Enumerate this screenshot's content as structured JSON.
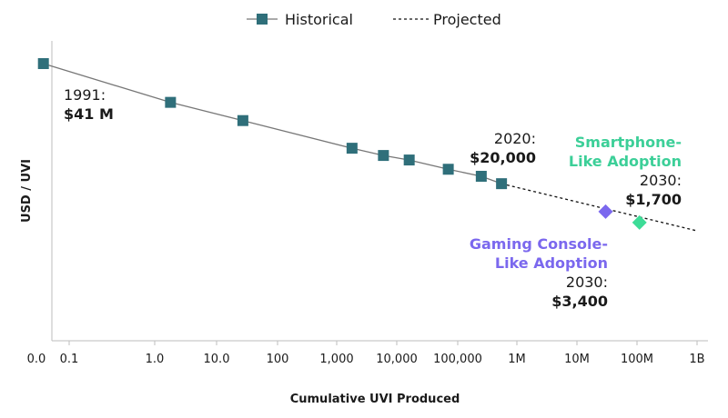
{
  "chart_data": {
    "type": "line",
    "xscale": "log",
    "xlabel": "Cumulative UVI Produced",
    "ylabel": "USD / UVI",
    "legend_position": "top-center",
    "x_tick_labels": [
      "0.0",
      "0.1",
      "1.0",
      "10.0",
      "100",
      "1,000",
      "10,000",
      "100,000",
      "1M",
      "10M",
      "100M",
      "1B"
    ],
    "grid": false,
    "series": [
      {
        "name": "Historical",
        "style": "solid-square-markers",
        "color": "#2f6f7a",
        "points": [
          {
            "x": 0.05,
            "y": 41000000
          },
          {
            "x": 1.8,
            "y": 3500000
          },
          {
            "x": 27,
            "y": 1100000
          },
          {
            "x": 1800,
            "y": 190000
          },
          {
            "x": 6000,
            "y": 120000
          },
          {
            "x": 16000,
            "y": 90000
          },
          {
            "x": 70000,
            "y": 50000
          },
          {
            "x": 250000,
            "y": 32000
          },
          {
            "x": 550000,
            "y": 20000
          }
        ]
      },
      {
        "name": "Projected",
        "style": "dashed",
        "color": "#111111",
        "points": [
          {
            "x": 550000,
            "y": 20000
          },
          {
            "x": 1000000000,
            "y": 1000
          }
        ]
      }
    ],
    "scenario_points": [
      {
        "x": 30000000,
        "y": 3400,
        "color": "#7b68ee"
      },
      {
        "x": 110000000,
        "y": 1700,
        "color": "#3ddc97"
      }
    ],
    "annotations": [
      {
        "id": "ann-1991",
        "lines": [
          {
            "text": "1991:",
            "bold": false,
            "color": "#1a1a1a"
          },
          {
            "text": "$41 M",
            "bold": true,
            "color": "#1a1a1a"
          }
        ]
      },
      {
        "id": "ann-2020",
        "lines": [
          {
            "text": "2020:",
            "bold": false,
            "color": "#1a1a1a"
          },
          {
            "text": "$20,000",
            "bold": true,
            "color": "#1a1a1a"
          }
        ]
      },
      {
        "id": "ann-smartphone",
        "lines": [
          {
            "text": "Smartphone-",
            "bold": true,
            "color": "#3ccf98"
          },
          {
            "text": "Like Adoption",
            "bold": true,
            "color": "#3ccf98"
          },
          {
            "text": "2030:",
            "bold": false,
            "color": "#1a1a1a"
          },
          {
            "text": "$1,700",
            "bold": true,
            "color": "#1a1a1a"
          }
        ]
      },
      {
        "id": "ann-console",
        "lines": [
          {
            "text": "Gaming Console-",
            "bold": true,
            "color": "#7b68ee"
          },
          {
            "text": "Like Adoption",
            "bold": true,
            "color": "#7b68ee"
          },
          {
            "text": "2030:",
            "bold": false,
            "color": "#1a1a1a"
          },
          {
            "text": "$3,400",
            "bold": true,
            "color": "#1a1a1a"
          }
        ]
      }
    ]
  }
}
